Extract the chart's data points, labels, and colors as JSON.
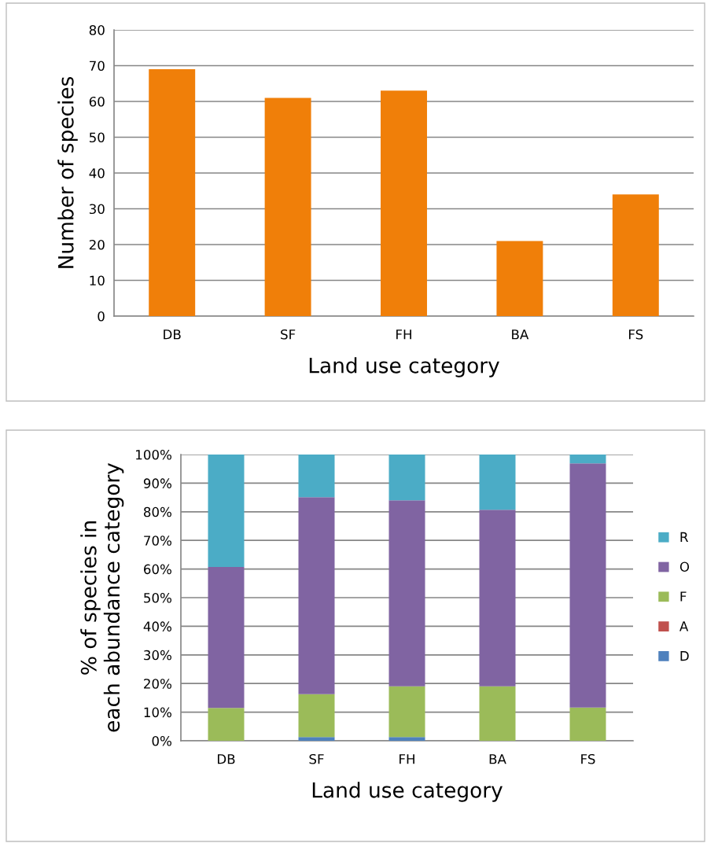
{
  "chart_data": [
    {
      "type": "bar",
      "xlabel": "Land use category",
      "ylabel": "Number of species",
      "categories": [
        "DB",
        "SF",
        "FH",
        "BA",
        "FS"
      ],
      "values": [
        69,
        61,
        63,
        21,
        34
      ],
      "color": "#f07f09",
      "ylim": [
        0,
        80
      ],
      "yticks": [
        0,
        10,
        20,
        30,
        40,
        50,
        60,
        70,
        80
      ],
      "grid": "y",
      "legend": false
    },
    {
      "type": "bar",
      "stacked": true,
      "xlabel": "Land use category",
      "ylabel": "% of species in each abundance category",
      "categories": [
        "DB",
        "SF",
        "FH",
        "BA",
        "FS"
      ],
      "series": [
        {
          "name": "D",
          "color": "#4f81bd",
          "values": [
            0,
            1.3,
            1.3,
            0,
            0
          ]
        },
        {
          "name": "A",
          "color": "#c0504d",
          "values": [
            0,
            0,
            0,
            0,
            0
          ]
        },
        {
          "name": "F",
          "color": "#9bbb59",
          "values": [
            11.5,
            15.0,
            17.7,
            19.0,
            11.6
          ]
        },
        {
          "name": "O",
          "color": "#8064a2",
          "values": [
            49.2,
            68.8,
            65.0,
            61.7,
            85.3
          ]
        },
        {
          "name": "R",
          "color": "#4bacc6",
          "values": [
            39.3,
            14.9,
            16.0,
            19.3,
            3.1
          ]
        }
      ],
      "ylim": [
        0,
        100
      ],
      "yticks": [
        {
          "value": 0,
          "label": "0%"
        },
        {
          "value": 10,
          "label": "10%"
        },
        {
          "value": 20,
          "label": "20%"
        },
        {
          "value": 30,
          "label": "30%"
        },
        {
          "value": 40,
          "label": "40%"
        },
        {
          "value": 50,
          "label": "50%"
        },
        {
          "value": 60,
          "label": "60%"
        },
        {
          "value": 70,
          "label": "70%"
        },
        {
          "value": 80,
          "label": "80%"
        },
        {
          "value": 90,
          "label": "90%"
        },
        {
          "value": 100,
          "label": "100%"
        }
      ],
      "grid": "y",
      "legend": "right"
    }
  ]
}
